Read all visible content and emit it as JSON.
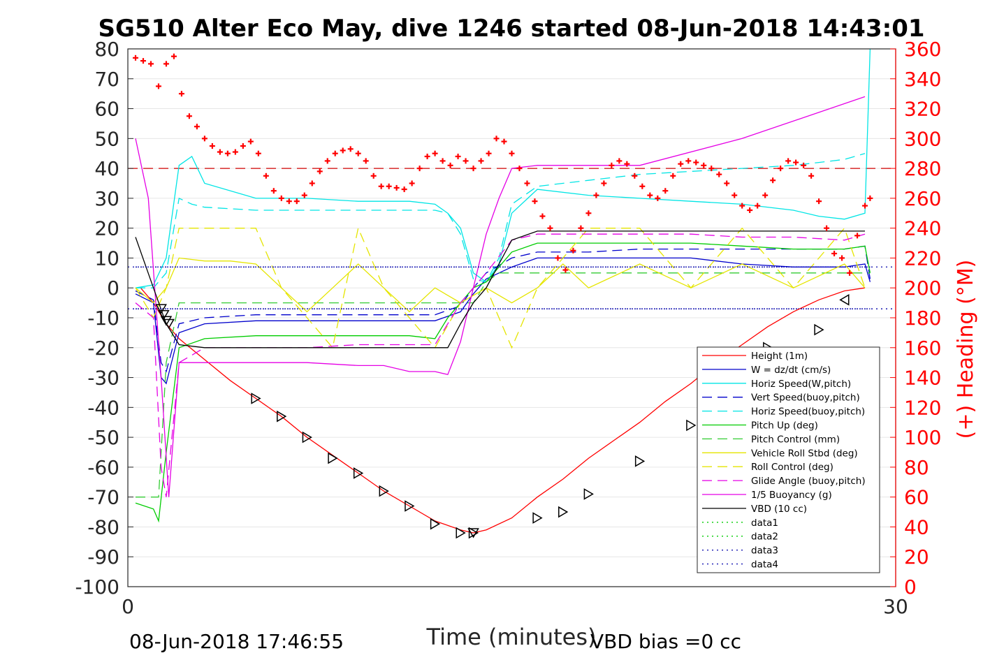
{
  "title": "SG510 Alter Eco May, dive 1246 started 08-Jun-2018 14:43:01",
  "footer": {
    "timestamp": "08-Jun-2018 17:46:55",
    "vbd_bias": "VBD bias =0 cc"
  },
  "colors": {
    "axis": "#262626",
    "right_axis": "#ff0000",
    "grid": "#e6e6e6"
  },
  "chart_data": {
    "type": "line",
    "title": "SG510 Alter Eco May, dive 1246 started 08-Jun-2018 14:43:01",
    "xlabel": "Time (minutes)",
    "ylabel": "",
    "y2label": "(+) Heading (°M)",
    "xlim": [
      0,
      30
    ],
    "ylim": [
      -100,
      80
    ],
    "y2lim": [
      0,
      360
    ],
    "xticks": [
      "0",
      "30"
    ],
    "yticks": [
      "80",
      "70",
      "60",
      "50",
      "40",
      "30",
      "20",
      "10",
      "0",
      "-10",
      "-20",
      "-30",
      "-40",
      "-50",
      "-60",
      "-70",
      "-80",
      "-90",
      "-100"
    ],
    "y2ticks": [
      "360",
      "340",
      "320",
      "300",
      "280",
      "260",
      "240",
      "220",
      "200",
      "180",
      "160",
      "140",
      "120",
      "100",
      "80",
      "60",
      "40",
      "20",
      "0"
    ],
    "grid": "horizontal",
    "legend_position": "bottom-right",
    "reference_lines": [
      {
        "y": 40,
        "color": "#d00000",
        "style": "dashed"
      },
      {
        "y": 7,
        "color": "#0000aa",
        "style": "dotted"
      },
      {
        "y": -7,
        "color": "#0000aa",
        "style": "dotted"
      }
    ],
    "series": [
      {
        "name": "Height (1m)",
        "color": "#ff0000",
        "style": "solid",
        "x": [
          0.5,
          1.0,
          1.5,
          2.0,
          3.0,
          4.0,
          5.0,
          6.0,
          7.0,
          8.0,
          9.0,
          10.0,
          11.0,
          12.0,
          13.0,
          13.5,
          14.0,
          15.0,
          16.0,
          17.0,
          18.0,
          19.0,
          20.0,
          21.0,
          22.0,
          23.0,
          24.0,
          25.0,
          26.0,
          27.0,
          28.0,
          28.8
        ],
        "y": [
          0,
          -5,
          -12,
          -17,
          -24,
          -31,
          -37,
          -43,
          -50,
          -56,
          -62,
          -68,
          -73,
          -78,
          -81,
          -82,
          -81,
          -77,
          -70,
          -64,
          -57,
          -51,
          -45,
          -38,
          -32,
          -25,
          -19,
          -13,
          -8,
          -4,
          -1,
          0
        ]
      },
      {
        "name": "W = dz/dt (cm/s)",
        "color": "#0000cc",
        "style": "solid",
        "x": [
          0.3,
          1.0,
          1.3,
          1.5,
          2.0,
          3.0,
          5.0,
          7.0,
          9.0,
          11.0,
          12.0,
          13.0,
          13.5,
          14.0,
          15.0,
          16.0,
          18.0,
          20.0,
          22.0,
          24.0,
          26.0,
          28.0,
          28.8,
          29.0
        ],
        "y": [
          -2,
          -5,
          -30,
          -32,
          -15,
          -12,
          -11,
          -11,
          -11,
          -11,
          -11,
          -8,
          -2,
          3,
          7,
          10,
          10,
          10,
          10,
          8,
          7,
          7,
          8,
          2
        ]
      },
      {
        "name": "Horiz Speed(W,pitch)",
        "color": "#00e5e5",
        "style": "solid",
        "x": [
          0.3,
          1.0,
          1.5,
          2.0,
          2.5,
          3.0,
          5.0,
          7.0,
          9.0,
          11.0,
          12.0,
          12.5,
          13.0,
          13.5,
          14.0,
          14.5,
          15.0,
          16.0,
          18.0,
          20.0,
          22.0,
          24.0,
          26.0,
          27.0,
          28.0,
          28.8,
          29.0
        ],
        "y": [
          0,
          1,
          10,
          41,
          44,
          35,
          30,
          30,
          29,
          29,
          28,
          25,
          20,
          5,
          2,
          8,
          25,
          33,
          31,
          30,
          29,
          28,
          26,
          24,
          23,
          25,
          80
        ]
      },
      {
        "name": "Vert Speed(buoy,pitch)",
        "color": "#0000cc",
        "style": "dashed",
        "x": [
          0.3,
          1.0,
          1.3,
          1.5,
          2.0,
          3.0,
          5.0,
          7.0,
          9.0,
          11.0,
          12.0,
          13.0,
          13.5,
          14.0,
          15.0,
          16.0,
          18.0,
          20.0,
          22.0,
          24.0,
          26.0,
          28.0,
          28.8,
          29.0
        ],
        "y": [
          -1,
          -4,
          -25,
          -28,
          -12,
          -10,
          -9,
          -9,
          -9,
          -9,
          -9,
          -6,
          0,
          5,
          10,
          12,
          12,
          13,
          13,
          13,
          13,
          13,
          14,
          3
        ]
      },
      {
        "name": "Horiz Speed(buoy,pitch)",
        "color": "#00e5e5",
        "style": "dashed",
        "x": [
          0.3,
          1.0,
          1.5,
          2.0,
          2.5,
          3.0,
          5.0,
          7.0,
          9.0,
          11.0,
          12.0,
          12.5,
          13.0,
          13.5,
          14.0,
          14.5,
          15.0,
          16.0,
          18.0,
          20.0,
          22.0,
          24.0,
          26.0,
          27.0,
          28.0,
          28.8
        ],
        "y": [
          0,
          0,
          5,
          30,
          28,
          27,
          26,
          26,
          26,
          26,
          26,
          25,
          18,
          3,
          2,
          10,
          28,
          34,
          36,
          38,
          39,
          40,
          41,
          42,
          43,
          45
        ]
      },
      {
        "name": "Pitch Up (deg)",
        "color": "#00cc00",
        "style": "solid",
        "x": [
          0.3,
          1.0,
          1.2,
          1.5,
          2.0,
          3.0,
          5.0,
          7.0,
          9.0,
          11.0,
          12.0,
          12.5,
          13.0,
          13.5,
          14.0,
          15.0,
          16.0,
          18.0,
          20.0,
          22.0,
          24.0,
          26.0,
          28.0,
          28.8,
          29.0
        ],
        "y": [
          -72,
          -74,
          -78,
          -55,
          -20,
          -17,
          -16,
          -16,
          -16,
          -16,
          -17,
          -10,
          -5,
          0,
          2,
          12,
          15,
          15,
          15,
          15,
          14,
          13,
          13,
          14,
          5
        ]
      },
      {
        "name": "Pitch Control (mm)",
        "color": "#33cc33",
        "style": "dashed",
        "x": [
          0.3,
          1.0,
          1.2,
          1.5,
          2.0,
          3.0,
          12.0,
          12.5,
          13.0,
          13.5,
          14.0,
          14.5,
          15.0,
          29.0
        ],
        "y": [
          -70,
          -70,
          -70,
          -25,
          -5,
          -5,
          -5,
          -5,
          -5,
          -5,
          2,
          5,
          5,
          5
        ]
      },
      {
        "name": "Vehicle Roll Stbd (deg)",
        "color": "#e5e500",
        "style": "solid",
        "x": [
          0.3,
          1.0,
          1.5,
          2.0,
          3.0,
          4.0,
          5.0,
          6.0,
          7.0,
          8.0,
          9.0,
          10.0,
          11.0,
          12.0,
          13.0,
          14.0,
          15.0,
          16.0,
          17.0,
          18.0,
          20.0,
          22.0,
          24.0,
          26.0,
          28.0,
          28.8
        ],
        "y": [
          0,
          -5,
          0,
          10,
          9,
          9,
          8,
          0,
          -8,
          0,
          8,
          0,
          -8,
          0,
          -5,
          0,
          -5,
          0,
          8,
          0,
          8,
          0,
          8,
          0,
          8,
          0
        ]
      },
      {
        "name": "Roll Control (deg)",
        "color": "#e5e500",
        "style": "dashed",
        "x": [
          0.3,
          1.0,
          1.5,
          2.0,
          4.0,
          5.0,
          6.0,
          8.0,
          9.0,
          10.0,
          12.0,
          13.0,
          14.0,
          15.0,
          16.0,
          18.0,
          20.0,
          22.0,
          24.0,
          26.0,
          28.0,
          28.8
        ],
        "y": [
          0,
          -10,
          0,
          20,
          20,
          20,
          0,
          -20,
          20,
          0,
          -20,
          -5,
          0,
          -20,
          0,
          20,
          20,
          0,
          20,
          0,
          20,
          0
        ]
      },
      {
        "name": "Glide Angle (buoy,pitch)",
        "color": "#e500e5",
        "style": "dashed",
        "x": [
          0.3,
          1.0,
          1.3,
          1.5,
          2.0,
          3.0,
          5.0,
          7.0,
          9.0,
          11.0,
          12.0,
          12.5,
          13.0,
          13.5,
          14.0,
          15.0,
          16.0,
          18.0,
          20.0,
          22.0,
          24.0,
          26.0,
          28.0,
          28.8
        ],
        "y": [
          -5,
          -10,
          -60,
          -70,
          -25,
          -20,
          -20,
          -20,
          -19,
          -19,
          -19,
          -12,
          -5,
          0,
          5,
          16,
          18,
          18,
          18,
          18,
          17,
          17,
          16,
          18
        ]
      },
      {
        "name": "1/5 Buoyancy (g)",
        "color": "#e500e5",
        "style": "solid",
        "x": [
          0.3,
          0.8,
          1.3,
          1.6,
          2.0,
          3.0,
          5.0,
          7.0,
          9.0,
          10.0,
          11.0,
          12.0,
          12.5,
          13.0,
          13.5,
          14.0,
          14.5,
          15.0,
          16.0,
          18.0,
          20.0,
          24.0,
          28.8
        ],
        "y": [
          50,
          30,
          -30,
          -70,
          -25,
          -25,
          -25,
          -25,
          -26,
          -26,
          -28,
          -28,
          -29,
          -18,
          0,
          18,
          30,
          40,
          41,
          41,
          41,
          50,
          64
        ]
      },
      {
        "name": "VBD (10 cc)",
        "color": "#000000",
        "style": "solid",
        "x": [
          0.3,
          1.0,
          1.5,
          2.0,
          3.0,
          12.0,
          12.5,
          13.0,
          13.5,
          14.0,
          14.5,
          15.0,
          16.0,
          28.8
        ],
        "y": [
          17,
          0,
          -12,
          -19,
          -20,
          -20,
          -20,
          -12,
          -5,
          0,
          8,
          16,
          19,
          19
        ]
      },
      {
        "name": "data1",
        "color": "#00cc00",
        "style": "dotted",
        "x": [],
        "y": []
      },
      {
        "name": "data2",
        "color": "#00cc00",
        "style": "dotted",
        "x": [],
        "y": []
      },
      {
        "name": "data3",
        "color": "#0000aa",
        "style": "dotted",
        "x": [
          0.3,
          29.0
        ],
        "y": [
          7,
          7
        ]
      },
      {
        "name": "data4",
        "color": "#0000aa",
        "style": "dotted",
        "x": [
          0.3,
          29.0
        ],
        "y": [
          -7,
          -7
        ]
      }
    ],
    "markers": {
      "triangles_down": {
        "x": [
          1.3,
          1.4,
          1.5,
          1.6,
          13.5
        ],
        "y": [
          -7,
          -9,
          -11,
          -12,
          -82
        ]
      },
      "triangles_right": {
        "x": [
          5.0,
          6.0,
          7.0,
          8.0,
          9.0,
          10.0,
          11.0,
          12.0,
          13.0,
          13.5,
          16.0,
          17.0,
          18.0,
          20.0,
          22.0,
          22.5,
          25.0,
          27.0
        ],
        "y": [
          -37,
          -43,
          -50,
          -57,
          -62,
          -68,
          -73,
          -79,
          -82,
          -82,
          -77,
          -75,
          -69,
          -58,
          -46,
          -42,
          -20,
          -14
        ]
      },
      "triangles_left": {
        "x": [
          28.0
        ],
        "y": [
          -4
        ]
      }
    },
    "heading": {
      "name": "(+) Heading (°M)",
      "color": "#ff0000",
      "marker": "+",
      "x": [
        0.3,
        0.6,
        0.9,
        1.2,
        1.5,
        1.8,
        2.1,
        2.4,
        2.7,
        3.0,
        3.3,
        3.6,
        3.9,
        4.2,
        4.5,
        4.8,
        5.1,
        5.4,
        5.7,
        6.0,
        6.3,
        6.6,
        6.9,
        7.2,
        7.5,
        7.8,
        8.1,
        8.4,
        8.7,
        9.0,
        9.3,
        9.6,
        9.9,
        10.2,
        10.5,
        10.8,
        11.1,
        11.4,
        11.7,
        12.0,
        12.3,
        12.6,
        12.9,
        13.2,
        13.5,
        13.8,
        14.1,
        14.4,
        14.7,
        15.0,
        15.3,
        15.6,
        15.9,
        16.2,
        16.5,
        16.8,
        17.1,
        17.4,
        17.7,
        18.0,
        18.3,
        18.6,
        18.9,
        19.2,
        19.5,
        19.8,
        20.1,
        20.4,
        20.7,
        21.0,
        21.3,
        21.6,
        21.9,
        22.2,
        22.5,
        22.8,
        23.1,
        23.4,
        23.7,
        24.0,
        24.3,
        24.6,
        24.9,
        25.2,
        25.5,
        25.8,
        26.1,
        26.4,
        26.7,
        27.0,
        27.3,
        27.6,
        27.9,
        28.2,
        28.5,
        28.8,
        29.0
      ],
      "y": [
        354,
        352,
        350,
        335,
        350,
        355,
        330,
        315,
        308,
        300,
        295,
        291,
        290,
        291,
        295,
        298,
        290,
        275,
        265,
        260,
        258,
        258,
        262,
        270,
        278,
        285,
        290,
        292,
        293,
        290,
        285,
        275,
        268,
        268,
        267,
        266,
        270,
        280,
        288,
        290,
        285,
        282,
        288,
        285,
        280,
        285,
        290,
        300,
        298,
        290,
        280,
        270,
        258,
        248,
        240,
        220,
        212,
        225,
        240,
        250,
        262,
        270,
        282,
        285,
        283,
        275,
        268,
        262,
        260,
        265,
        275,
        283,
        285,
        284,
        282,
        280,
        276,
        270,
        262,
        255,
        252,
        255,
        262,
        272,
        280,
        285,
        284,
        282,
        275,
        258,
        240,
        223,
        220,
        210,
        235,
        255,
        260
      ]
    }
  }
}
